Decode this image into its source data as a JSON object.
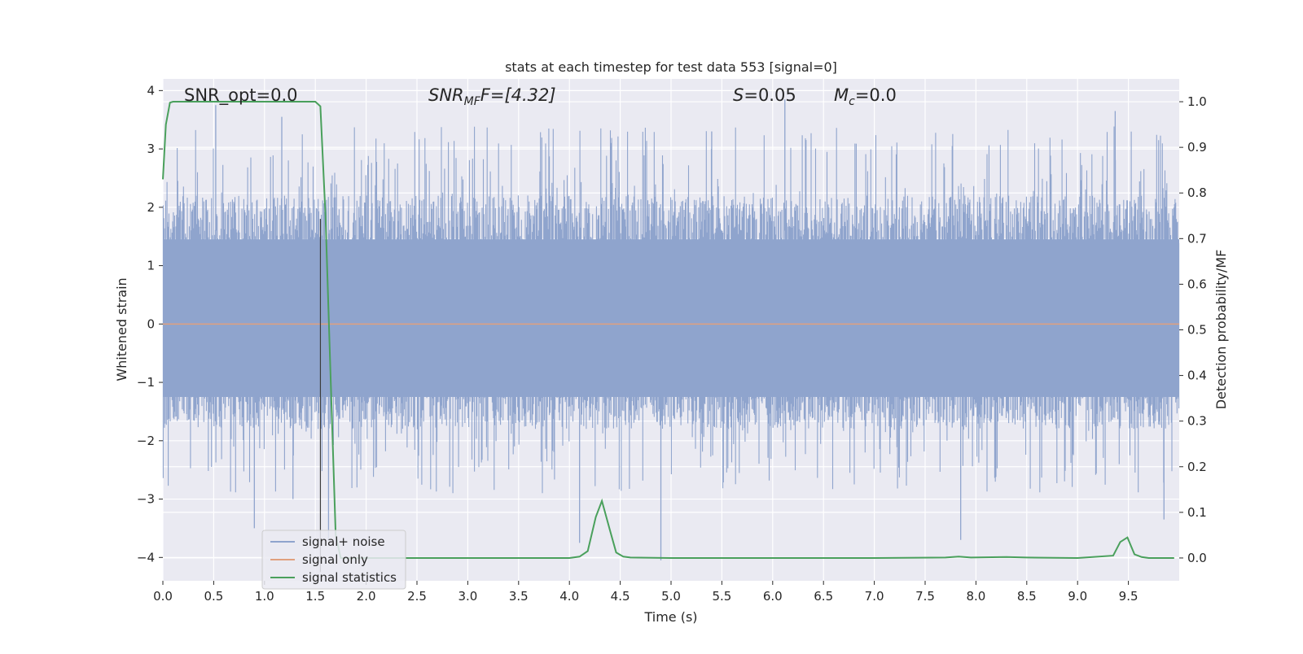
{
  "chart_data": {
    "type": "line",
    "title": "stats at each timestep for test data 553 [signal=0]",
    "xlabel": "Time (s)",
    "ylabel_left": "Whitened strain",
    "ylabel_right": "Detection probability/MF",
    "xlim": [
      0.0,
      10.0
    ],
    "ylim_left": [
      -4.4,
      4.2
    ],
    "ylim_right": [
      -0.05,
      1.05
    ],
    "x_ticks": [
      "0.0",
      "0.5",
      "1.0",
      "1.5",
      "2.0",
      "2.5",
      "3.0",
      "3.5",
      "4.0",
      "4.5",
      "5.0",
      "5.5",
      "6.0",
      "6.5",
      "7.0",
      "7.5",
      "8.0",
      "8.5",
      "9.0",
      "9.5"
    ],
    "y_ticks_left": [
      "4",
      "3",
      "2",
      "1",
      "0",
      "−1",
      "−2",
      "−3",
      "−4"
    ],
    "y_ticks_right": [
      "1.0",
      "0.9",
      "0.8",
      "0.7",
      "0.6",
      "0.5",
      "0.4",
      "0.3",
      "0.2",
      "0.1",
      "0.0"
    ],
    "grid": true,
    "legend_position": "lower-left",
    "annotations": {
      "snr_opt_text": "SNR_opt=0.0",
      "snr_mf_prefix": "SNR",
      "snr_mf_sub": "MF",
      "snr_mf_suffix": "F=[4.32]",
      "s_prefix": "S",
      "s_suffix": "=0.05",
      "mc_prefix": "M",
      "mc_sub": "c",
      "mc_suffix": "=0.0"
    },
    "marker_line_x": 1.55,
    "series": [
      {
        "name": "signal+ noise",
        "axis": "left",
        "color": "#8fa4cd",
        "description_of_values": "whitened noise samples, approx. uniform band between -1.8 and 2.2 with spikes",
        "band": [
          -1.8,
          2.2
        ],
        "spikes": [
          {
            "x": 0.52,
            "y": 3.75
          },
          {
            "x": 0.9,
            "y": -3.5
          },
          {
            "x": 1.17,
            "y": 3.55
          },
          {
            "x": 1.28,
            "y": -3.0
          },
          {
            "x": 1.55,
            "y": 1.8
          },
          {
            "x": 1.63,
            "y": -3.7
          },
          {
            "x": 4.1,
            "y": -3.75
          },
          {
            "x": 4.9,
            "y": -4.05
          },
          {
            "x": 5.4,
            "y": 3.3
          },
          {
            "x": 6.12,
            "y": 3.85
          },
          {
            "x": 7.85,
            "y": -3.7
          },
          {
            "x": 9.37,
            "y": 3.65
          },
          {
            "x": 9.85,
            "y": -3.35
          }
        ]
      },
      {
        "name": "signal only",
        "axis": "left",
        "color": "#e0a07e",
        "x": [
          0.0,
          10.0
        ],
        "y": [
          0.0,
          0.0
        ]
      },
      {
        "name": "signal statistics",
        "axis": "right",
        "color": "#4aa05c",
        "x": [
          0.0,
          0.03,
          0.07,
          0.1,
          0.2,
          0.5,
          1.0,
          1.4,
          1.5,
          1.55,
          1.6,
          1.65,
          1.7,
          1.75,
          2.0,
          3.0,
          4.0,
          4.1,
          4.18,
          4.26,
          4.32,
          4.4,
          4.46,
          4.53,
          4.6,
          5.0,
          7.0,
          7.7,
          7.83,
          7.95,
          8.3,
          8.5,
          9.0,
          9.35,
          9.42,
          9.49,
          9.56,
          9.63,
          9.7,
          9.95
        ],
        "y": [
          0.83,
          0.95,
          0.998,
          1.0,
          1.0,
          1.0,
          1.0,
          1.0,
          1.0,
          0.99,
          0.75,
          0.4,
          0.05,
          0.0,
          0.0,
          0.0,
          0.0,
          0.003,
          0.015,
          0.09,
          0.125,
          0.06,
          0.012,
          0.003,
          0.001,
          0.0,
          0.0,
          0.001,
          0.003,
          0.001,
          0.002,
          0.001,
          0.0,
          0.005,
          0.035,
          0.045,
          0.008,
          0.002,
          0.0,
          0.0
        ]
      }
    ]
  }
}
